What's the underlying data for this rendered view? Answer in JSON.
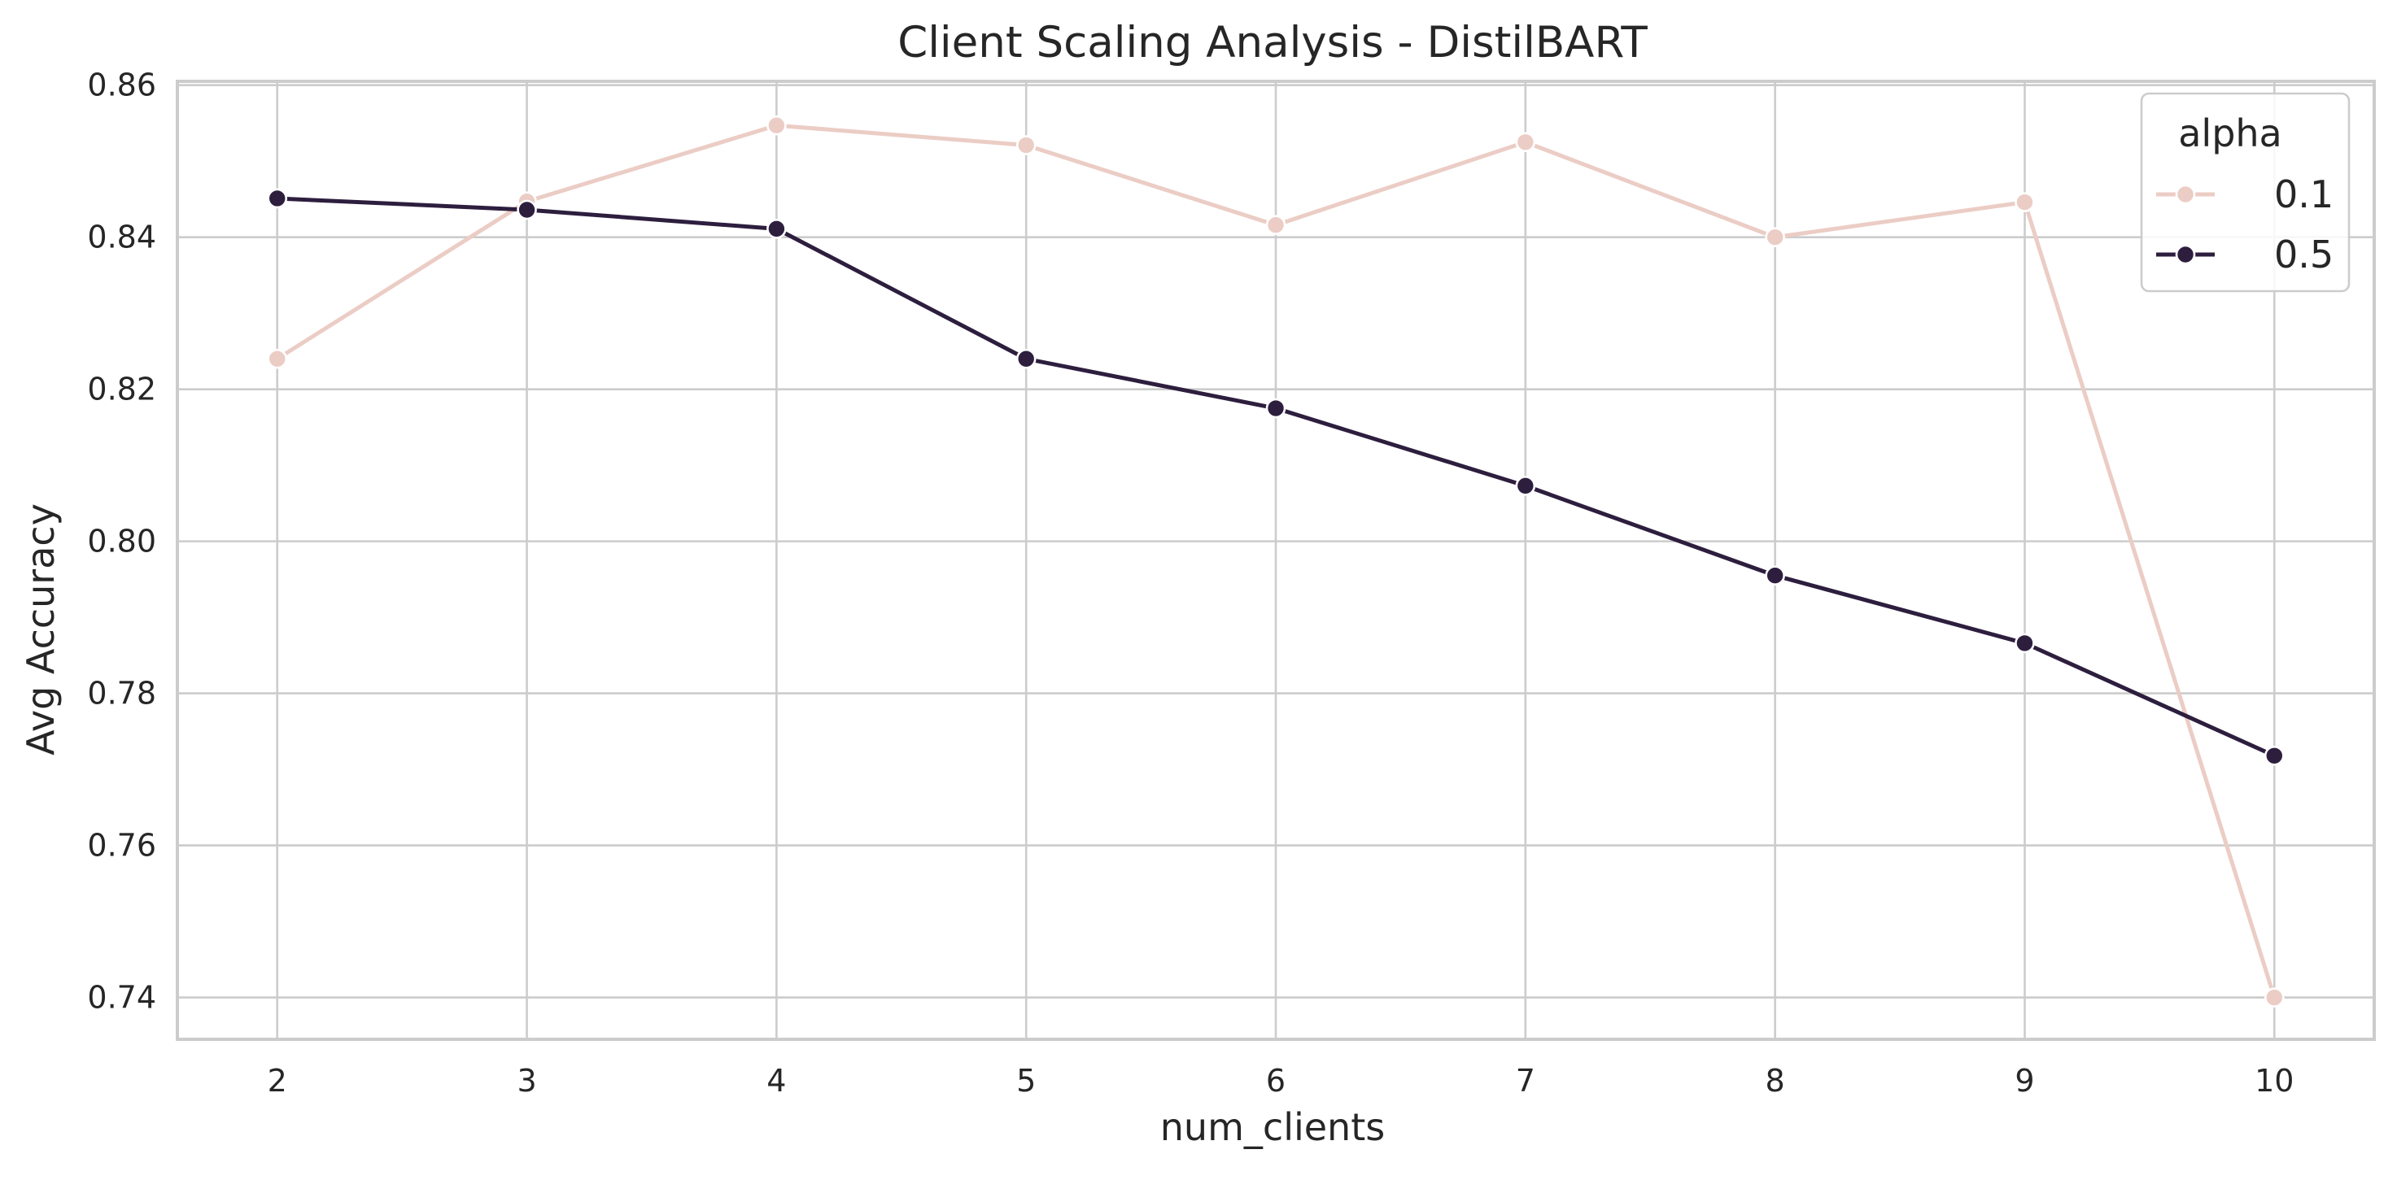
{
  "chart_data": {
    "type": "line",
    "title": "Client Scaling Analysis - DistilBART",
    "xlabel": "num_clients",
    "ylabel": "Avg Accuracy",
    "x": [
      2,
      3,
      4,
      5,
      6,
      7,
      8,
      9,
      10
    ],
    "x_ticks": [
      "2",
      "3",
      "4",
      "5",
      "6",
      "7",
      "8",
      "9",
      "10"
    ],
    "y_ticks": [
      "0.74",
      "0.76",
      "0.78",
      "0.80",
      "0.82",
      "0.84",
      "0.86"
    ],
    "xlim": [
      1.6,
      10.4
    ],
    "ylim": [
      0.7345,
      0.8605
    ],
    "grid": true,
    "legend": {
      "title": "alpha",
      "placement": "top-right"
    },
    "series": [
      {
        "name": "0.1",
        "color": "#ebcdc5",
        "values": [
          0.824,
          0.8447,
          0.8547,
          0.8521,
          0.8416,
          0.8525,
          0.84,
          0.8446,
          0.74
        ]
      },
      {
        "name": "0.5",
        "color": "#2d1e3e",
        "values": [
          0.8451,
          0.8436,
          0.8411,
          0.824,
          0.8175,
          0.8073,
          0.7955,
          0.7866,
          0.7718
        ]
      }
    ]
  }
}
